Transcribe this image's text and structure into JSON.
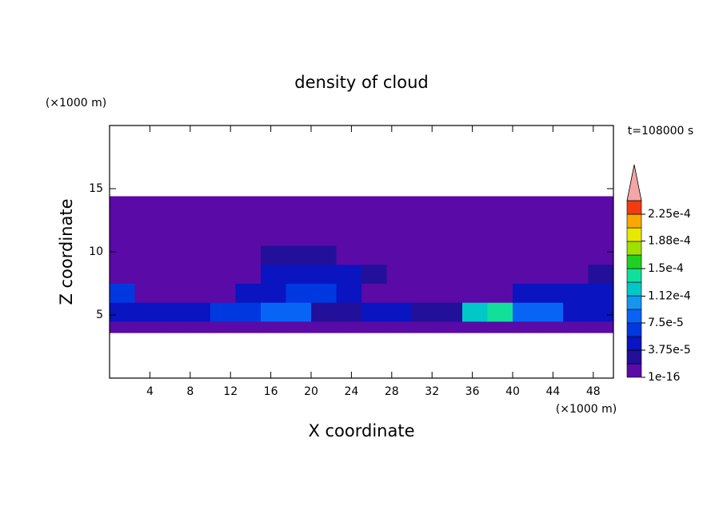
{
  "chart_data": {
    "type": "contour",
    "title": "density of cloud",
    "xlabel": "X coordinate",
    "ylabel": "Z coordinate",
    "xunit": "(×1000 m)",
    "yunit": "(×1000 m)",
    "time_label": "t=108000 s",
    "xlim": [
      0,
      50
    ],
    "ylim": [
      0,
      20
    ],
    "xticks": [
      4,
      8,
      12,
      16,
      20,
      24,
      28,
      32,
      36,
      40,
      44,
      48
    ],
    "yticks": [
      5,
      10,
      15
    ],
    "x_edges": [
      0,
      2.5,
      5,
      7.5,
      10,
      12.5,
      15,
      17.5,
      20,
      22.5,
      25,
      27.5,
      30,
      32.5,
      35,
      37.5,
      40,
      42.5,
      45,
      47.5,
      50
    ],
    "z_edges": [
      3.6,
      4.5,
      6,
      7.5,
      9,
      10.5,
      12,
      13.5,
      14.4
    ],
    "z": [
      [
        5e-06,
        5e-06,
        5e-06,
        5e-06,
        5e-06,
        5e-06,
        5e-06,
        5e-06,
        5e-06,
        5e-06,
        5e-06,
        5e-06,
        5e-06,
        5e-06,
        5e-06,
        5e-06,
        5e-06,
        5e-06,
        5e-06,
        5e-06
      ],
      [
        5e-05,
        5e-05,
        4e-05,
        4e-05,
        6e-05,
        6e-05,
        8e-05,
        8e-05,
        3e-05,
        3e-05,
        4e-05,
        4e-05,
        3e-05,
        3e-05,
        0.00012,
        0.00014,
        8e-05,
        8e-05,
        4e-05,
        4e-05
      ],
      [
        6e-05,
        1e-05,
        1e-05,
        1e-05,
        1e-05,
        4e-05,
        4e-05,
        6e-05,
        6e-05,
        4e-05,
        5e-06,
        5e-06,
        5e-06,
        5e-06,
        5e-06,
        5e-06,
        5e-05,
        5e-05,
        5e-05,
        5e-05
      ],
      [
        5e-06,
        5e-06,
        5e-06,
        5e-06,
        5e-06,
        5e-06,
        4e-05,
        4e-05,
        4e-05,
        4e-05,
        2e-05,
        5e-06,
        5e-06,
        5e-06,
        5e-06,
        5e-06,
        5e-06,
        5e-06,
        5e-06,
        2e-05
      ],
      [
        5e-06,
        5e-06,
        5e-06,
        5e-06,
        5e-06,
        5e-06,
        2e-05,
        2e-05,
        2e-05,
        1.5e-05,
        1.5e-05,
        5e-06,
        5e-06,
        5e-06,
        5e-06,
        5e-06,
        5e-06,
        5e-06,
        5e-06,
        5e-06
      ],
      [
        5e-06,
        5e-06,
        5e-06,
        5e-06,
        5e-06,
        5e-06,
        5e-06,
        5e-06,
        5e-06,
        5e-06,
        5e-06,
        5e-06,
        5e-06,
        5e-06,
        5e-06,
        5e-06,
        5e-06,
        5e-06,
        5e-06,
        5e-06
      ],
      [
        5e-06,
        5e-06,
        5e-06,
        5e-06,
        5e-06,
        5e-06,
        5e-06,
        5e-06,
        5e-06,
        5e-06,
        5e-06,
        5e-06,
        5e-06,
        5e-06,
        5e-06,
        5e-06,
        5e-06,
        5e-06,
        5e-06,
        5e-06
      ],
      [
        5e-06,
        5e-06,
        5e-06,
        5e-06,
        5e-06,
        5e-06,
        5e-06,
        5e-06,
        5e-06,
        5e-06,
        5e-06,
        5e-06,
        5e-06,
        5e-06,
        5e-06,
        5e-06,
        5e-06,
        5e-06,
        5e-06,
        5e-06
      ]
    ],
    "colorbar": {
      "levels": [
        1e-16,
        1.875e-05,
        3.75e-05,
        5.625e-05,
        7.5e-05,
        9.375e-05,
        0.0001125,
        0.00013125,
        0.00015,
        0.00016875,
        0.0001875,
        0.00020625,
        0.000225,
        0.00024375
      ],
      "colors": [
        "#5a0aa6",
        "#22109a",
        "#0a14c0",
        "#0038e0",
        "#0864f4",
        "#1496f0",
        "#00c8c8",
        "#10e09a",
        "#20d020",
        "#a0e000",
        "#e8e800",
        "#f8a800",
        "#f03c10"
      ],
      "extend_color": "#f4a6a6",
      "ticks": [
        1e-16,
        {
          "value": 3.75e-05,
          "label": "3.75e-5"
        },
        {
          "value": 7.5e-05,
          "label": "7.5e-5"
        },
        {
          "value": 0.000112,
          "label": "1.12e-4"
        },
        {
          "value": 0.00015,
          "label": "1.5e-4"
        },
        {
          "value": 0.000188,
          "label": "1.88e-4"
        },
        {
          "value": 0.000225,
          "label": "2.25e-4"
        }
      ]
    }
  }
}
